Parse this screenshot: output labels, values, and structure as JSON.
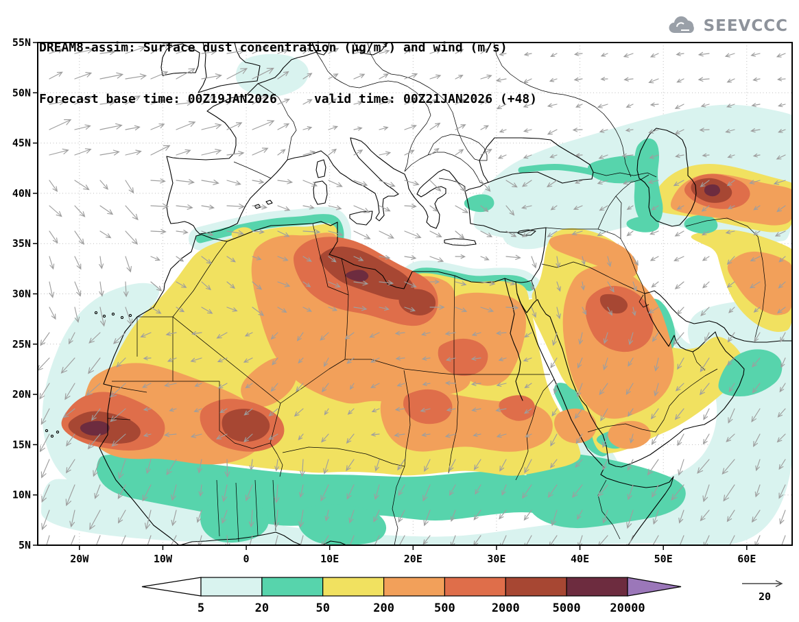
{
  "header": {
    "title_line1": "DREAM8-assim: Surface dust concentration (μg/m³) and wind (m/s)",
    "title_line2": "Forecast base time: 00Z19JAN2026     valid time: 00Z21JAN2026 (+48)",
    "logo_text": "SEEVCCC"
  },
  "chart_data": {
    "type": "heatmap",
    "title": "DREAM8-assim: Surface dust concentration (μg/m³) and wind (m/s)",
    "model": "DREAM8-assim",
    "variable": "Surface dust concentration",
    "units": "μg/m³",
    "wind_variable": "wind",
    "wind_units": "m/s",
    "forecast_base_time": "00Z19JAN2026",
    "valid_time": "00Z21JAN2026",
    "lead": "+48",
    "projection": "latlon",
    "lon_range": [
      -25,
      65.5
    ],
    "lat_range": [
      5,
      55
    ],
    "grid": "dotted",
    "legend_position": "bottom",
    "levels": [
      5,
      20,
      50,
      200,
      500,
      2000,
      5000,
      20000
    ],
    "level_labels": [
      "5",
      "20",
      "50",
      "200",
      "500",
      "2000",
      "5000",
      "20000"
    ],
    "palette": {
      "under": "#ffffff",
      "colors": [
        "#d9f3ef",
        "#57d4ac",
        "#f1e160",
        "#f2a05a",
        "#df6e4a",
        "#a74733",
        "#6d2c3f"
      ],
      "over": "#9b77b9"
    },
    "wind_reference": {
      "value": 20,
      "label": "20",
      "units": "m/s"
    },
    "lat_ticks": [
      {
        "label": "55N",
        "value": 55
      },
      {
        "label": "50N",
        "value": 50
      },
      {
        "label": "45N",
        "value": 45
      },
      {
        "label": "40N",
        "value": 40
      },
      {
        "label": "35N",
        "value": 35
      },
      {
        "label": "30N",
        "value": 30
      },
      {
        "label": "25N",
        "value": 25
      },
      {
        "label": "20N",
        "value": 20
      },
      {
        "label": "15N",
        "value": 15
      },
      {
        "label": "10N",
        "value": 10
      },
      {
        "label": "5N",
        "value": 5
      }
    ],
    "lon_ticks": [
      {
        "label": "20W",
        "value": -20
      },
      {
        "label": "10W",
        "value": -10
      },
      {
        "label": "0",
        "value": 0
      },
      {
        "label": "10E",
        "value": 10
      },
      {
        "label": "20E",
        "value": 20
      },
      {
        "label": "30E",
        "value": 30
      },
      {
        "label": "40E",
        "value": 40
      },
      {
        "label": "50E",
        "value": 50
      },
      {
        "label": "60E",
        "value": 60
      }
    ],
    "features": [
      {
        "region": "Central Algeria / Libya",
        "max_level": "2000-5000 μg/m³"
      },
      {
        "region": "Western Sahara / Mauritania coast",
        "max_level": "5000-20000 μg/m³"
      },
      {
        "region": "Mali",
        "max_level": "2000-5000 μg/m³"
      },
      {
        "region": "Central Saudi Arabia",
        "max_level": "2000-5000 μg/m³"
      },
      {
        "region": "Eastern Turkey / Caucasus",
        "max_level": "2000-5000 μg/m³"
      },
      {
        "region": "Sahel belt",
        "max_level": "20-50 μg/m³"
      },
      {
        "region": "Europe / open Atlantic",
        "max_level": "below 5 μg/m³"
      }
    ]
  },
  "colors": {
    "coastline": "#000000",
    "gridline": "#bcbcbc",
    "wind_arrow": "#9e9e9e",
    "frame": "#000000",
    "logo_gray": "#8e939b",
    "background": "#ffffff"
  }
}
